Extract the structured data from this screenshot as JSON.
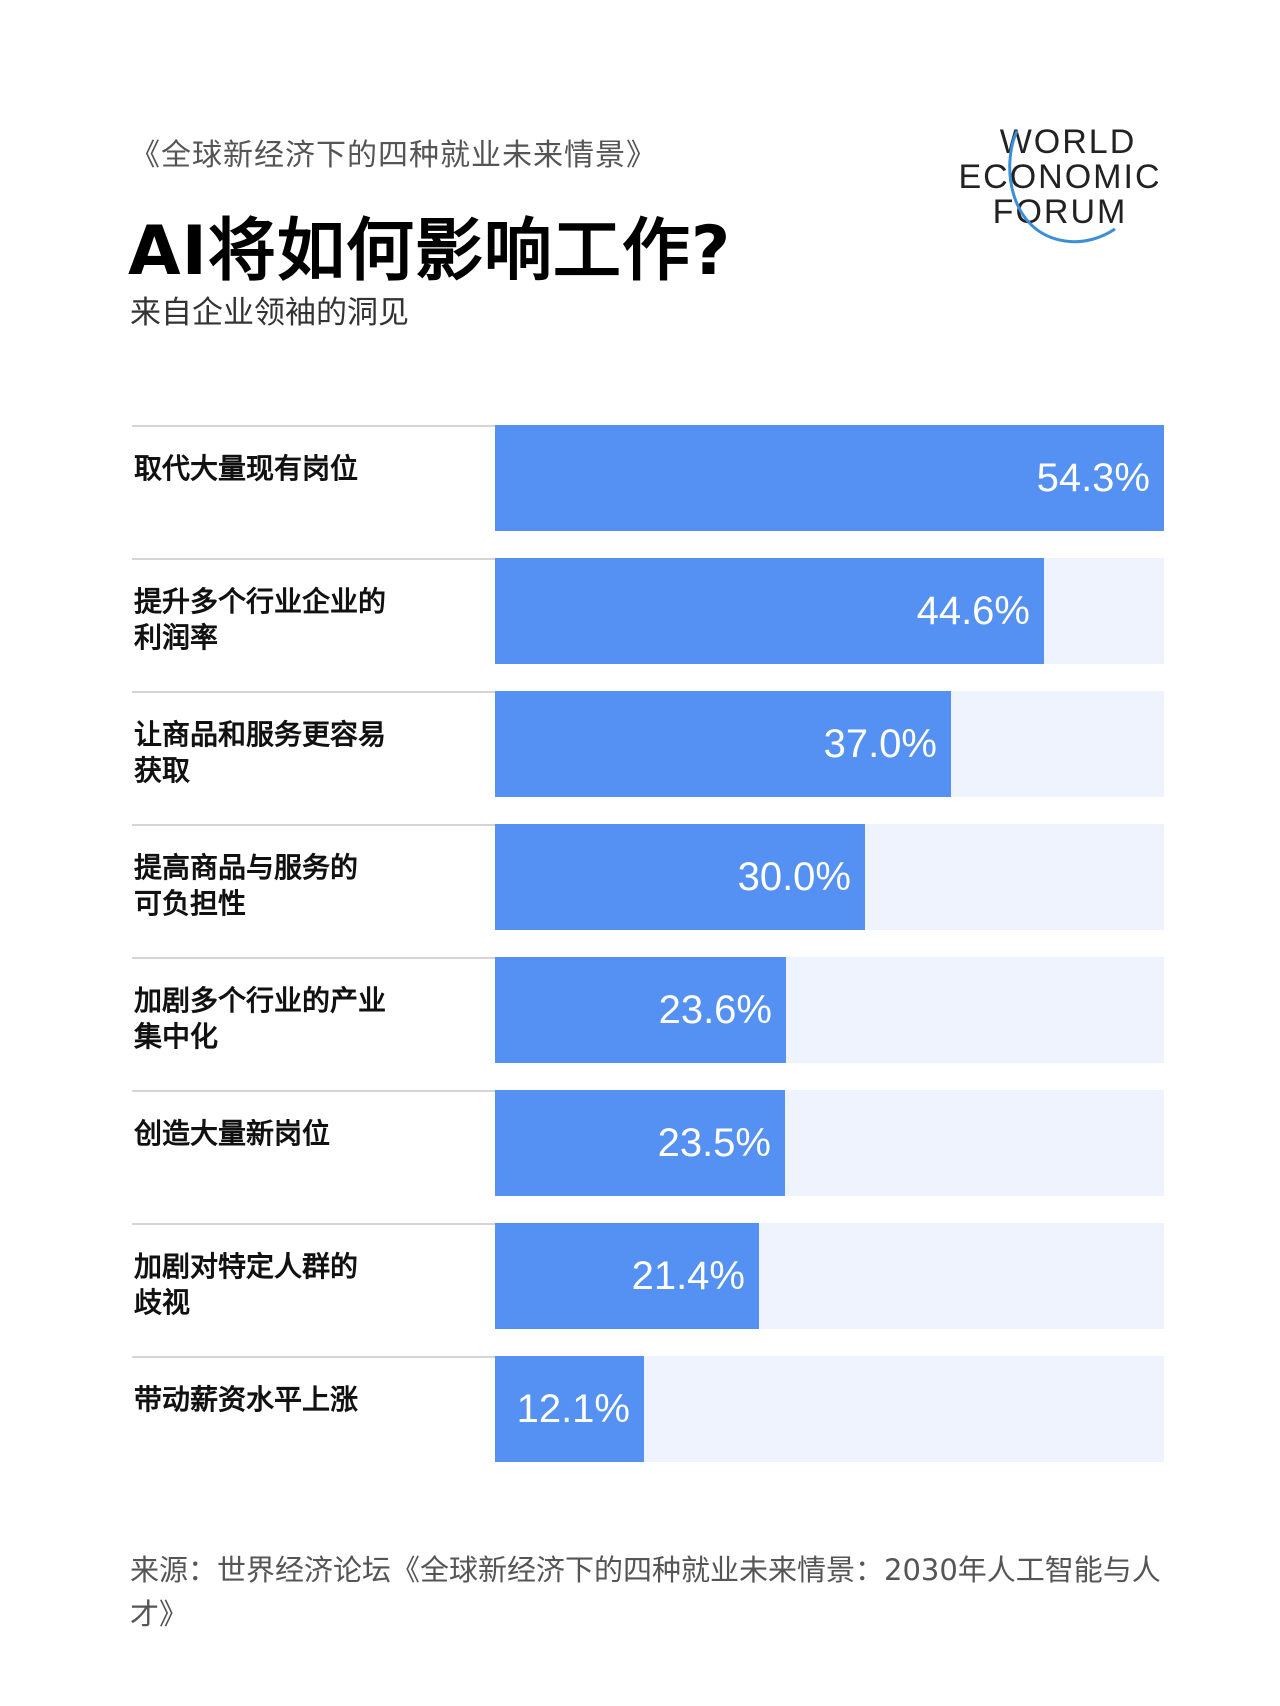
{
  "header": {
    "kicker": "《全球新经济下的四种就业未来情景》",
    "title": "AI将如何影响工作?",
    "subtitle": "来自企业领袖的洞见"
  },
  "logo": {
    "line1": "WORLD",
    "line2": "ECONOMIC",
    "line3": "FORUM",
    "accent_color": "#3c8fd6"
  },
  "chart_data": {
    "type": "bar",
    "orientation": "horizontal",
    "categories": [
      "取代大量现有岗位",
      "提升多个行业企业的利润率",
      "让商品和服务更容易获取",
      "提高商品与服务的可负担性",
      "加剧多个行业的产业集中化",
      "创造大量新岗位",
      "加剧对特定人群的歧视",
      "带动薪资水平上涨"
    ],
    "label_lines": [
      [
        "取代大量现有岗位"
      ],
      [
        "提升多个行业企业的",
        "利润率"
      ],
      [
        "让商品和服务更容易",
        "获取"
      ],
      [
        "提高商品与服务的",
        "可负担性"
      ],
      [
        "加剧多个行业的产业",
        "集中化"
      ],
      [
        "创造大量新岗位"
      ],
      [
        "加剧对特定人群的",
        "歧视"
      ],
      [
        "带动薪资水平上涨"
      ]
    ],
    "values": [
      54.3,
      44.6,
      37.0,
      30.0,
      23.6,
      23.5,
      21.4,
      12.1
    ],
    "value_labels": [
      "54.3%",
      "44.6%",
      "37.0%",
      "30.0%",
      "23.6%",
      "23.5%",
      "21.4%",
      "12.1%"
    ],
    "xlim": [
      0,
      54.3
    ],
    "bar_color": "#5590f3",
    "track_color": "#eef3fd"
  },
  "footer": {
    "source": "来源：世界经济论坛《全球新经济下的四种就业未来情景：2030年人工智能与人才》"
  }
}
